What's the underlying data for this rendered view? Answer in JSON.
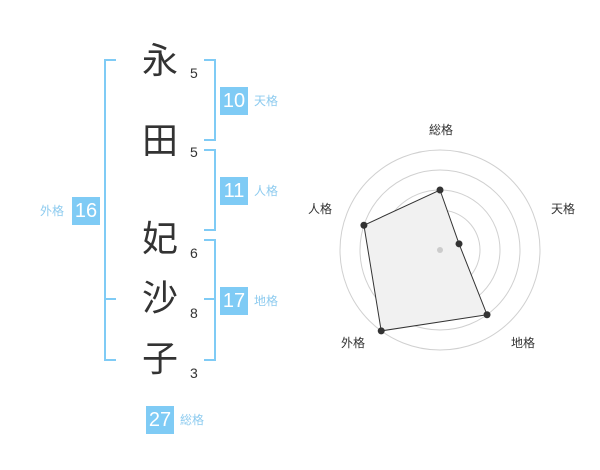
{
  "name": {
    "characters": [
      {
        "char": "永",
        "strokes": "5"
      },
      {
        "char": "田",
        "strokes": "5"
      },
      {
        "char": "妃",
        "strokes": "6"
      },
      {
        "char": "沙",
        "strokes": "8"
      },
      {
        "char": "子",
        "strokes": "3"
      }
    ]
  },
  "kaku": {
    "tenkaku": {
      "label": "天格",
      "value": "10"
    },
    "jinkaku": {
      "label": "人格",
      "value": "11"
    },
    "chikaku": {
      "label": "地格",
      "value": "17"
    },
    "gaikaku": {
      "label": "外格",
      "value": "16"
    },
    "soukaku": {
      "label": "総格",
      "value": "27"
    }
  },
  "colors": {
    "accent": "#7fcbf5",
    "label": "#8dcbef"
  },
  "chart_data": {
    "type": "radar",
    "axes": [
      "総格",
      "天格",
      "地格",
      "外格",
      "人格"
    ],
    "values": [
      3,
      1,
      4,
      5,
      4
    ],
    "range": [
      0,
      5
    ],
    "rings": 5
  }
}
